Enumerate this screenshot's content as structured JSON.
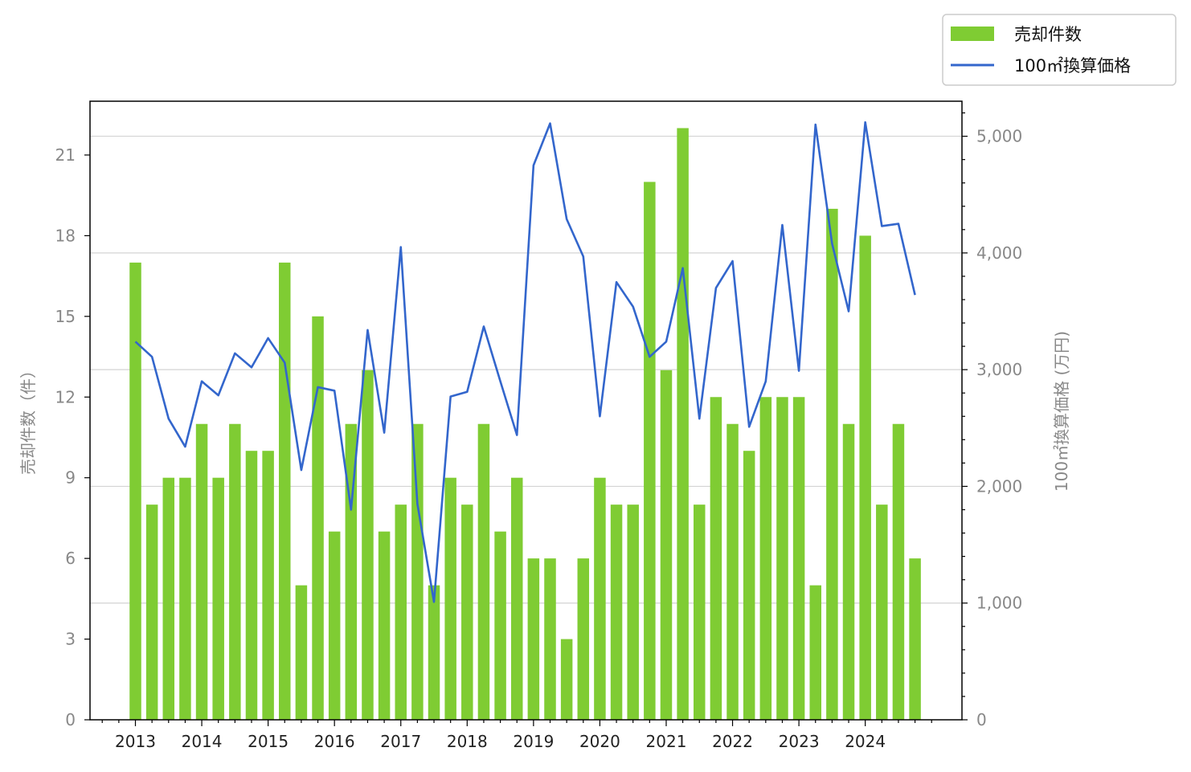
{
  "chart_data": {
    "type": "bar",
    "xlabel": "",
    "ylabel": "売却件数（件）",
    "ylabel_right": "100㎡換算価格 (万円)",
    "ylim": [
      0,
      23
    ],
    "ylim_right": [
      0,
      5300
    ],
    "x_tick_labels": [
      "2013",
      "2014",
      "2015",
      "2016",
      "2017",
      "2018",
      "2019",
      "2020",
      "2021",
      "2022",
      "2023",
      "2024"
    ],
    "y_ticks_left": [
      "0",
      "3",
      "6",
      "9",
      "12",
      "15",
      "18",
      "21"
    ],
    "y_ticks_right": [
      "0",
      "1,000",
      "2,000",
      "3,000",
      "4,000",
      "5,000"
    ],
    "grid": "horizontal (right axis)",
    "legend_position": "top-right, outside",
    "categories": [
      "2013 Q1",
      "2013 Q2",
      "2013 Q3",
      "2013 Q4",
      "2014 Q1",
      "2014 Q2",
      "2014 Q3",
      "2014 Q4",
      "2015 Q1",
      "2015 Q2",
      "2015 Q3",
      "2015 Q4",
      "2016 Q1",
      "2016 Q2",
      "2016 Q3",
      "2016 Q4",
      "2017 Q1",
      "2017 Q2",
      "2017 Q3",
      "2017 Q4",
      "2018 Q1",
      "2018 Q2",
      "2018 Q3",
      "2018 Q4",
      "2019 Q1",
      "2019 Q2",
      "2019 Q3",
      "2019 Q4",
      "2020 Q1",
      "2020 Q2",
      "2020 Q3",
      "2020 Q4",
      "2021 Q1",
      "2021 Q2",
      "2021 Q3",
      "2021 Q4",
      "2022 Q1",
      "2022 Q2",
      "2022 Q3",
      "2022 Q4",
      "2023 Q1",
      "2023 Q2",
      "2023 Q3",
      "2023 Q4",
      "2024 Q1",
      "2024 Q2",
      "2024 Q3",
      "2024 Q4"
    ],
    "series": [
      {
        "name": "売却件数",
        "type": "bar",
        "axis": "left",
        "color": "#7fcc33",
        "values": [
          17,
          8,
          9,
          9,
          11,
          9,
          11,
          10,
          10,
          17,
          5,
          15,
          7,
          11,
          13,
          7,
          8,
          11,
          5,
          9,
          8,
          11,
          7,
          9,
          6,
          6,
          3,
          6,
          9,
          8,
          8,
          20,
          13,
          22,
          8,
          12,
          11,
          10,
          12,
          12,
          12,
          5,
          19,
          11,
          18,
          8,
          11,
          6
        ]
      },
      {
        "name": "100㎡換算価格",
        "type": "line",
        "axis": "right",
        "color": "#3366cc",
        "values": [
          3240,
          3110,
          2580,
          2340,
          2900,
          2780,
          3140,
          3020,
          3270,
          3060,
          2140,
          2850,
          2820,
          1800,
          3340,
          2460,
          4050,
          1850,
          1010,
          2770,
          2810,
          3370,
          2900,
          2440,
          4750,
          5110,
          4290,
          3970,
          2600,
          3750,
          3540,
          3110,
          3240,
          3870,
          2580,
          3700,
          3930,
          2510,
          2900,
          4240,
          2990,
          5100,
          4080,
          3500,
          5120,
          4230,
          4250,
          3640
        ]
      }
    ]
  }
}
